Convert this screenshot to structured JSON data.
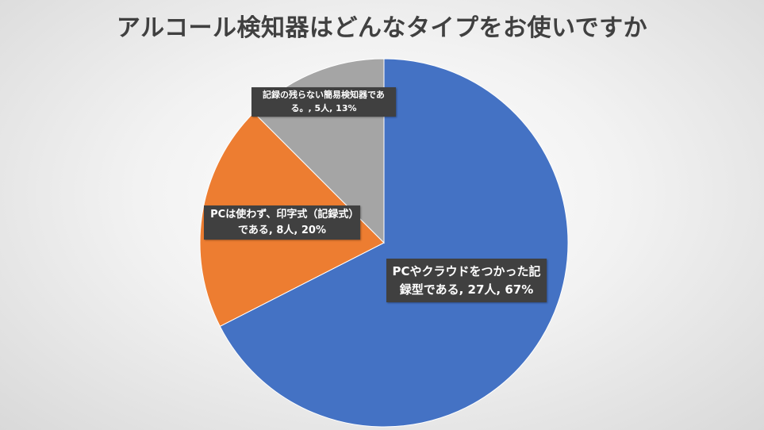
{
  "chart_data": {
    "type": "pie",
    "title": "アルコール検知器はどんなタイプをお使いですか",
    "slices": [
      {
        "name": "PCやクラウドをつかった記録型である",
        "value": 27,
        "percent": "67%",
        "label": "PCやクラウドをつかった記録型である, 27人, 67%",
        "color": "#4472C4"
      },
      {
        "name": "PCは使わず、印字式（記録式）である",
        "value": 8,
        "percent": "20%",
        "label": "PCは使わず、印字式（記録式）である, 8人, 20%",
        "color": "#ED7D31"
      },
      {
        "name": "記録の残らない簡易検知器である。",
        "value": 5,
        "percent": "13%",
        "label": "記録の残らない簡易検知器である。, 5人, 13%",
        "color": "#A5A5A5"
      }
    ],
    "start_angle": "12 o'clock",
    "direction": "clockwise",
    "legend": "none",
    "data_labels": "callout boxes"
  }
}
